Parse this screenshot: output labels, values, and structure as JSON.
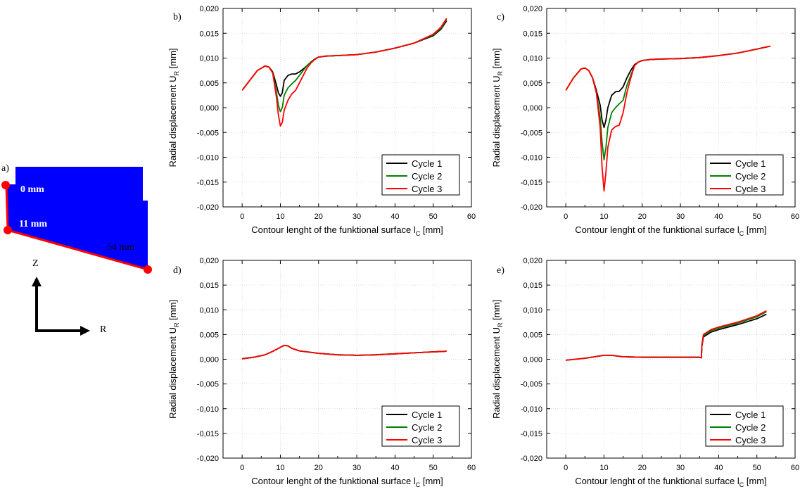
{
  "schematic": {
    "panel_label": "a)",
    "points": [
      "0 mm",
      "11 mm",
      "54 mm"
    ],
    "axis_z": "Z",
    "axis_r": "R",
    "colors": {
      "body": "#0000ff",
      "contour": "#ff0000",
      "axes": "#000000"
    }
  },
  "chart_data": [
    {
      "type": "line",
      "panel_label": "b)",
      "xlabel": "Contour lenght of the funktional surface l",
      "xlabel_sub": "C",
      "xlabel_unit": " [mm]",
      "ylabel": "Radial displacement U",
      "ylabel_sub": "R",
      "ylabel_unit": " [mm]",
      "xlim": [
        -5,
        60
      ],
      "ylim": [
        -0.02,
        0.02
      ],
      "xticks": [
        "0",
        "10",
        "20",
        "30",
        "40",
        "50",
        "60"
      ],
      "yticks": [
        "-0,020",
        "-0,015",
        "-0,010",
        "-0,005",
        "0,000",
        "0,005",
        "0,010",
        "0,015",
        "0,020"
      ],
      "legend_position": "bottom-right",
      "series": [
        {
          "name": "Cycle 1",
          "color": "#000000",
          "x": [
            0,
            2,
            4,
            6,
            7,
            8,
            9,
            9.5,
            10,
            10.5,
            11,
            12,
            13,
            14,
            15,
            16,
            17,
            18,
            19,
            20,
            22,
            25,
            30,
            35,
            40,
            45,
            50,
            52,
            53.5
          ],
          "y": [
            0.0035,
            0.0055,
            0.0075,
            0.0084,
            0.0082,
            0.0072,
            0.0045,
            0.003,
            0.0023,
            0.003,
            0.0055,
            0.0065,
            0.0068,
            0.0068,
            0.0072,
            0.0078,
            0.0085,
            0.0092,
            0.0098,
            0.0102,
            0.0104,
            0.0105,
            0.0107,
            0.0112,
            0.012,
            0.013,
            0.0145,
            0.0158,
            0.0175
          ]
        },
        {
          "name": "Cycle 2",
          "color": "#008000",
          "x": [
            0,
            2,
            4,
            6,
            7,
            8,
            9,
            9.5,
            10,
            10.5,
            11,
            12,
            13,
            14,
            15,
            16,
            17,
            18,
            19,
            20,
            22,
            25,
            30,
            35,
            40,
            45,
            50,
            52,
            53.5
          ],
          "y": [
            0.0035,
            0.0055,
            0.0075,
            0.0084,
            0.0082,
            0.007,
            0.003,
            0.0005,
            -0.0008,
            0.0,
            0.0025,
            0.004,
            0.0048,
            0.0055,
            0.0065,
            0.0075,
            0.0085,
            0.0092,
            0.0098,
            0.0102,
            0.0104,
            0.0105,
            0.0107,
            0.0112,
            0.012,
            0.013,
            0.0147,
            0.016,
            0.0178
          ]
        },
        {
          "name": "Cycle 3",
          "color": "#ff0000",
          "x": [
            0,
            2,
            4,
            6,
            7,
            8,
            9,
            9.5,
            10,
            10.5,
            11,
            12,
            13,
            14,
            15,
            16,
            17,
            18,
            19,
            20,
            22,
            25,
            30,
            35,
            40,
            45,
            50,
            52,
            53.5
          ],
          "y": [
            0.0035,
            0.0055,
            0.0075,
            0.0084,
            0.0082,
            0.007,
            0.002,
            -0.0015,
            -0.0037,
            -0.003,
            -0.0005,
            0.0015,
            0.0028,
            0.0035,
            0.005,
            0.0065,
            0.008,
            0.009,
            0.0097,
            0.0102,
            0.0104,
            0.0105,
            0.0107,
            0.0112,
            0.012,
            0.013,
            0.0148,
            0.0162,
            0.018
          ]
        }
      ]
    },
    {
      "type": "line",
      "panel_label": "c)",
      "xlabel": "Contour lenght of the funktional surface l",
      "xlabel_sub": "C",
      "xlabel_unit": " [mm]",
      "ylabel": "Radial displacement U",
      "ylabel_sub": "R",
      "ylabel_unit": " [mm]",
      "xlim": [
        -5,
        60
      ],
      "ylim": [
        -0.02,
        0.02
      ],
      "xticks": [
        "0",
        "10",
        "20",
        "30",
        "40",
        "50",
        "60"
      ],
      "yticks": [
        "-0,020",
        "-0,015",
        "-0,010",
        "-0,005",
        "0,000",
        "0,005",
        "0,010",
        "0,015",
        "0,020"
      ],
      "legend_position": "bottom-right",
      "series": [
        {
          "name": "Cycle 1",
          "color": "#000000",
          "x": [
            0,
            2,
            4,
            5,
            6,
            7,
            8,
            9,
            9.5,
            10,
            10.5,
            11,
            12,
            13,
            14,
            15,
            16,
            17,
            18,
            19,
            20,
            22,
            25,
            30,
            35,
            40,
            45,
            50,
            53.5
          ],
          "y": [
            0.0035,
            0.006,
            0.0078,
            0.008,
            0.0075,
            0.006,
            0.0035,
            0.0005,
            -0.0025,
            -0.004,
            -0.0025,
            0.0,
            0.0025,
            0.0032,
            0.0033,
            0.0042,
            0.006,
            0.0075,
            0.0087,
            0.0092,
            0.0095,
            0.0097,
            0.0098,
            0.0099,
            0.0101,
            0.0105,
            0.011,
            0.0118,
            0.0124
          ]
        },
        {
          "name": "Cycle 2",
          "color": "#008000",
          "x": [
            0,
            2,
            4,
            5,
            6,
            7,
            8,
            9,
            9.5,
            10,
            10.5,
            11,
            12,
            13,
            14,
            15,
            16,
            17,
            18,
            19,
            20,
            22,
            25,
            30,
            35,
            40,
            45,
            50,
            53.5
          ],
          "y": [
            0.0035,
            0.006,
            0.0078,
            0.008,
            0.0075,
            0.006,
            0.003,
            -0.002,
            -0.007,
            -0.0105,
            -0.008,
            -0.004,
            -0.001,
            0.0,
            0.0008,
            0.0015,
            0.0045,
            0.0065,
            0.0085,
            0.0092,
            0.0095,
            0.0097,
            0.0098,
            0.0099,
            0.0101,
            0.0105,
            0.011,
            0.0118,
            0.0124
          ]
        },
        {
          "name": "Cycle 3",
          "color": "#ff0000",
          "x": [
            0,
            2,
            4,
            5,
            6,
            7,
            8,
            9,
            9.5,
            10,
            10.5,
            11,
            12,
            13,
            14,
            15,
            16,
            17,
            18,
            19,
            20,
            22,
            25,
            30,
            35,
            40,
            45,
            50,
            53.5
          ],
          "y": [
            0.0035,
            0.006,
            0.0078,
            0.008,
            0.0075,
            0.006,
            0.003,
            -0.004,
            -0.012,
            -0.0168,
            -0.013,
            -0.008,
            -0.0045,
            -0.0038,
            -0.0035,
            -0.001,
            0.003,
            0.006,
            0.0085,
            0.0092,
            0.0095,
            0.0097,
            0.0098,
            0.0099,
            0.0101,
            0.0105,
            0.011,
            0.0118,
            0.0124
          ]
        }
      ]
    },
    {
      "type": "line",
      "panel_label": "d)",
      "xlabel": "Contour lenght of the funktional surface l",
      "xlabel_sub": "C",
      "xlabel_unit": " [mm]",
      "ylabel": "Radial displacement U",
      "ylabel_sub": "R",
      "ylabel_unit": " [mm]",
      "xlim": [
        -5,
        60
      ],
      "ylim": [
        -0.02,
        0.02
      ],
      "xticks": [
        "0",
        "10",
        "20",
        "30",
        "40",
        "50",
        "60"
      ],
      "yticks": [
        "-0,020",
        "-0,015",
        "-0,010",
        "-0,005",
        "0,000",
        "0,005",
        "0,010",
        "0,015",
        "0,020"
      ],
      "legend_position": "bottom-right",
      "series": [
        {
          "name": "Cycle 1",
          "color": "#000000",
          "x": [
            0,
            3,
            6,
            8,
            10,
            11,
            12,
            13,
            15,
            20,
            25,
            30,
            35,
            40,
            45,
            50,
            53,
            53.5
          ],
          "y": [
            0.0001,
            0.0004,
            0.0009,
            0.0016,
            0.0024,
            0.0028,
            0.0027,
            0.0022,
            0.0017,
            0.0012,
            0.0009,
            0.0008,
            0.0009,
            0.0011,
            0.0013,
            0.0015,
            0.0016,
            0.0017
          ]
        },
        {
          "name": "Cycle 2",
          "color": "#008000",
          "x": [
            0,
            3,
            6,
            8,
            10,
            11,
            12,
            13,
            15,
            20,
            25,
            30,
            35,
            40,
            45,
            50,
            53,
            53.5
          ],
          "y": [
            0.0001,
            0.0004,
            0.0009,
            0.0016,
            0.0024,
            0.0028,
            0.0027,
            0.0022,
            0.0017,
            0.0012,
            0.0009,
            0.0008,
            0.0009,
            0.0011,
            0.0013,
            0.0015,
            0.0016,
            0.0017
          ]
        },
        {
          "name": "Cycle 3",
          "color": "#ff0000",
          "x": [
            0,
            3,
            6,
            8,
            10,
            11,
            12,
            13,
            15,
            20,
            25,
            30,
            35,
            40,
            45,
            50,
            53,
            53.5
          ],
          "y": [
            0.0001,
            0.0004,
            0.0009,
            0.0016,
            0.0024,
            0.0028,
            0.0027,
            0.0022,
            0.0017,
            0.0012,
            0.0009,
            0.0008,
            0.0009,
            0.0011,
            0.0013,
            0.0015,
            0.0016,
            0.0017
          ]
        }
      ]
    },
    {
      "type": "line",
      "panel_label": "e)",
      "xlabel": "Contour lenght of the funktional surface l",
      "xlabel_sub": "C",
      "xlabel_unit": " [mm]",
      "ylabel": "Radial displacement U",
      "ylabel_sub": "R",
      "ylabel_unit": " [mm]",
      "xlim": [
        -5,
        60
      ],
      "ylim": [
        -0.02,
        0.02
      ],
      "xticks": [
        "0",
        "10",
        "20",
        "30",
        "40",
        "50",
        "60"
      ],
      "yticks": [
        "-0,020",
        "-0,015",
        "-0,010",
        "-0,005",
        "0,000",
        "0,005",
        "0,010",
        "0,015",
        "0,020"
      ],
      "legend_position": "bottom-right",
      "series": [
        {
          "name": "Cycle 1",
          "color": "#000000",
          "x": [
            0,
            5,
            10,
            12,
            15,
            20,
            25,
            30,
            35,
            35.5,
            35.6,
            36,
            38,
            40,
            45,
            50,
            52.5
          ],
          "y": [
            -0.0002,
            0.0002,
            0.0008,
            0.0008,
            0.0005,
            0.0004,
            0.0004,
            0.0004,
            0.0004,
            0.0003,
            0.0025,
            0.0045,
            0.0055,
            0.006,
            0.007,
            0.0082,
            0.0091
          ]
        },
        {
          "name": "Cycle 2",
          "color": "#008000",
          "x": [
            0,
            5,
            10,
            12,
            15,
            20,
            25,
            30,
            35,
            35.5,
            35.6,
            36,
            38,
            40,
            45,
            50,
            52.5
          ],
          "y": [
            -0.0002,
            0.0002,
            0.0008,
            0.0008,
            0.0005,
            0.0004,
            0.0004,
            0.0004,
            0.0004,
            0.0003,
            0.0027,
            0.0048,
            0.0058,
            0.0063,
            0.0073,
            0.0086,
            0.0096
          ]
        },
        {
          "name": "Cycle 3",
          "color": "#ff0000",
          "x": [
            0,
            5,
            10,
            12,
            15,
            20,
            25,
            30,
            35,
            35.5,
            35.6,
            36,
            38,
            40,
            45,
            50,
            52.5
          ],
          "y": [
            -0.0002,
            0.0002,
            0.0008,
            0.0008,
            0.0005,
            0.0004,
            0.0004,
            0.0004,
            0.0004,
            0.0003,
            0.0028,
            0.005,
            0.006,
            0.0065,
            0.0075,
            0.0088,
            0.0098
          ]
        }
      ]
    }
  ]
}
